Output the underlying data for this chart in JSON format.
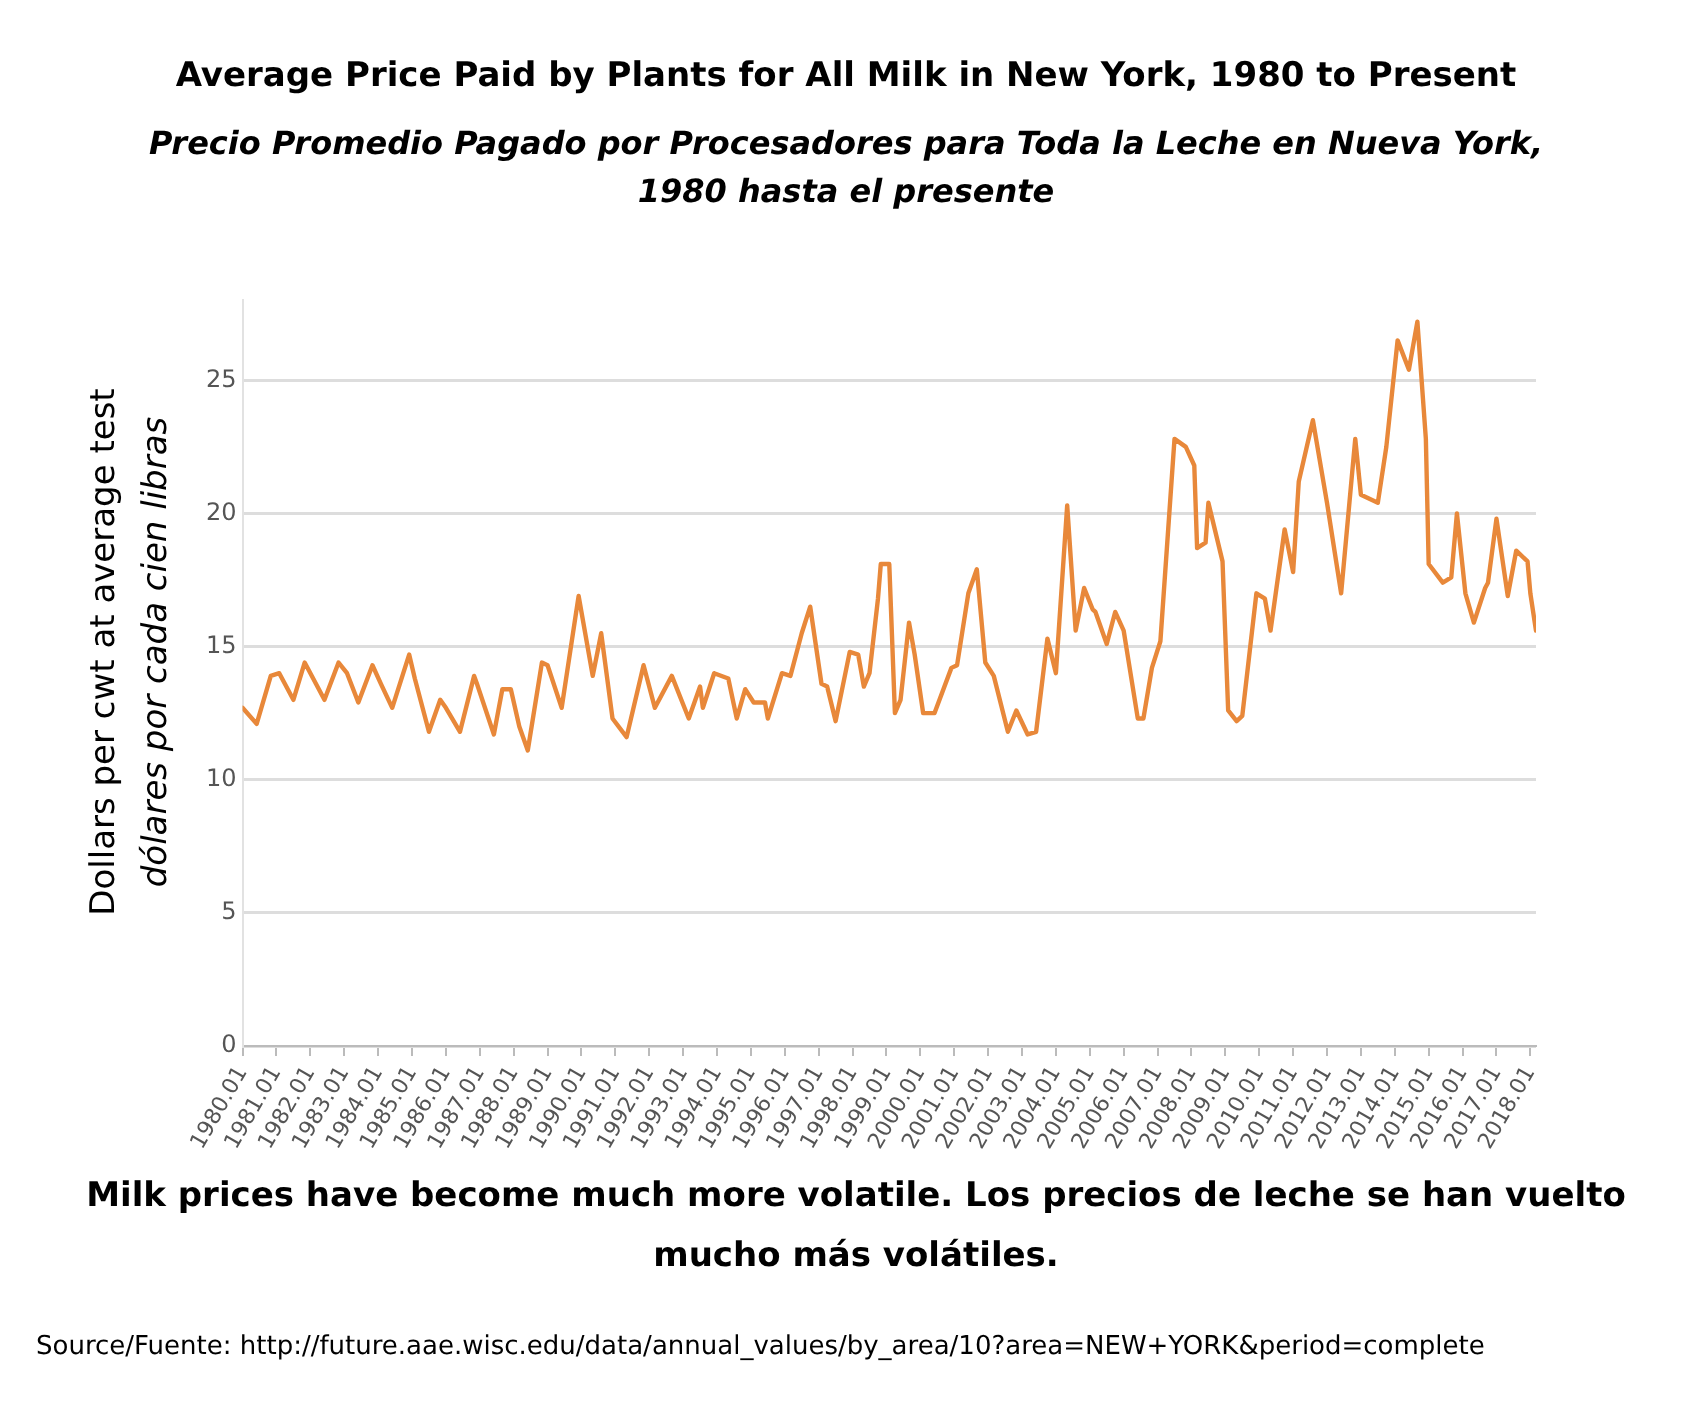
{
  "chart_data": {
    "type": "line",
    "title": "Average Price Paid by Plants for All Milk in New York, 1980 to Present",
    "subtitle": "Precio Promedio Pagado por Procesadores para Toda la Leche en Nueva York, 1980 hasta el presente",
    "ylabel": "Dollars per cwt at average test\ndólares por cada cien libras",
    "annotations": [
      "Milk prices have become much more volatile.  Los precios de leche se han vuelto mucho más volátiles.",
      "Source/Fuente: http://future.aae.wisc.edu/data/annual_values/by_area/10?area=NEW+YORK&period=complete"
    ],
    "x": [
      "1980-01",
      "1980-06",
      "1980-11",
      "1981-02",
      "1981-07",
      "1981-11",
      "1982-06",
      "1982-11",
      "1983-02",
      "1983-06",
      "1983-11",
      "1984-02",
      "1984-06",
      "1984-12",
      "1985-02",
      "1985-07",
      "1985-11",
      "1986-01",
      "1986-06",
      "1986-11",
      "1986-12",
      "1987-06",
      "1987-09",
      "1987-12",
      "1988-03",
      "1988-06",
      "1988-11",
      "1989-01",
      "1989-06",
      "1989-12",
      "1990-05",
      "1990-08",
      "1990-12",
      "1991-05",
      "1991-11",
      "1992-03",
      "1992-09",
      "1993-03",
      "1993-07",
      "1993-08",
      "1993-12",
      "1994-05",
      "1994-08",
      "1994-11",
      "1995-02",
      "1995-06",
      "1995-07",
      "1995-12",
      "1996-03",
      "1996-07",
      "1996-10",
      "1997-02",
      "1997-04",
      "1997-07",
      "1997-12",
      "1998-03",
      "1998-05",
      "1998-07",
      "1998-10",
      "1998-11",
      "1999-02",
      "1999-04",
      "1999-06",
      "1999-09",
      "1999-11",
      "2000-02",
      "2000-06",
      "2000-12",
      "2001-02",
      "2001-06",
      "2001-09",
      "2001-12",
      "2002-03",
      "2002-08",
      "2002-11",
      "2003-03",
      "2003-06",
      "2003-10",
      "2004-01",
      "2004-05",
      "2004-08",
      "2004-11",
      "2005-02",
      "2005-03",
      "2005-07",
      "2005-10",
      "2006-01",
      "2006-06",
      "2006-08",
      "2006-11",
      "2007-02",
      "2007-07",
      "2007-11",
      "2008-02",
      "2008-03",
      "2008-06",
      "2008-07",
      "2008-12",
      "2009-02",
      "2009-05",
      "2009-07",
      "2009-12",
      "2010-03",
      "2010-05",
      "2010-10",
      "2011-01",
      "2011-03",
      "2011-08",
      "2012-01",
      "2012-06",
      "2012-11",
      "2013-01",
      "2013-07",
      "2013-10",
      "2014-02",
      "2014-06",
      "2014-09",
      "2014-12",
      "2015-01",
      "2015-06",
      "2015-09",
      "2015-11",
      "2016-02",
      "2016-05",
      "2016-09",
      "2016-10",
      "2017-01",
      "2017-05",
      "2017-08",
      "2017-12",
      "2018-01",
      "2018-03"
    ],
    "series": [
      {
        "color": "#e8883a",
        "values": [
          12.7,
          12.1,
          13.9,
          14.0,
          13.0,
          14.4,
          13.0,
          14.4,
          14.0,
          12.9,
          14.3,
          13.6,
          12.7,
          14.7,
          13.8,
          11.8,
          13.0,
          12.7,
          11.8,
          13.9,
          13.6,
          11.7,
          13.4,
          13.4,
          12.0,
          11.1,
          14.4,
          14.3,
          12.7,
          16.9,
          13.9,
          15.5,
          12.3,
          11.6,
          14.3,
          12.7,
          13.9,
          12.3,
          13.5,
          12.7,
          14.0,
          13.8,
          12.3,
          13.4,
          12.9,
          12.9,
          12.3,
          14.0,
          13.9,
          15.5,
          16.5,
          13.6,
          13.5,
          12.2,
          14.8,
          14.7,
          13.5,
          14.0,
          16.8,
          18.1,
          18.1,
          12.5,
          13.0,
          15.9,
          14.7,
          12.5,
          12.5,
          14.2,
          14.3,
          17.0,
          17.9,
          14.4,
          13.9,
          11.8,
          12.6,
          11.7,
          11.8,
          15.3,
          14.0,
          20.3,
          15.6,
          17.2,
          16.4,
          16.3,
          15.1,
          16.3,
          15.6,
          12.3,
          12.3,
          14.2,
          15.2,
          22.8,
          22.5,
          21.8,
          18.7,
          18.9,
          20.4,
          18.2,
          12.6,
          12.2,
          12.4,
          17.0,
          16.8,
          15.6,
          19.4,
          17.8,
          21.2,
          23.5,
          20.4,
          17.0,
          22.8,
          20.7,
          20.4,
          22.5,
          26.5,
          25.4,
          27.2,
          22.8,
          18.1,
          17.4,
          17.6,
          20.0,
          17.0,
          15.9,
          17.2,
          17.4,
          19.8,
          16.9,
          18.6,
          18.2,
          17.0,
          15.6
        ]
      }
    ],
    "xlim": [
      "1980-01",
      "2018-03"
    ],
    "xticks": [
      {
        "value": "1980-01",
        "label": "1980.01"
      },
      {
        "value": "1981-01",
        "label": "1981.01"
      },
      {
        "value": "1982-01",
        "label": "1982.01"
      },
      {
        "value": "1983-01",
        "label": "1983.01"
      },
      {
        "value": "1984-01",
        "label": "1984.01"
      },
      {
        "value": "1985-01",
        "label": "1985.01"
      },
      {
        "value": "1986-01",
        "label": "1986.01"
      },
      {
        "value": "1987-01",
        "label": "1987.01"
      },
      {
        "value": "1988-01",
        "label": "1988.01"
      },
      {
        "value": "1989-01",
        "label": "1989.01"
      },
      {
        "value": "1990-01",
        "label": "1990.01"
      },
      {
        "value": "1991-01",
        "label": "1991.01"
      },
      {
        "value": "1992-01",
        "label": "1992.01"
      },
      {
        "value": "1993-01",
        "label": "1993.01"
      },
      {
        "value": "1994-01",
        "label": "1994.01"
      },
      {
        "value": "1995-01",
        "label": "1995.01"
      },
      {
        "value": "1996-01",
        "label": "1996.01"
      },
      {
        "value": "1997-01",
        "label": "1997.01"
      },
      {
        "value": "1998-01",
        "label": "1998.01"
      },
      {
        "value": "1999-01",
        "label": "1999.01"
      },
      {
        "value": "2000-01",
        "label": "2000.01"
      },
      {
        "value": "2001-01",
        "label": "2001.01"
      },
      {
        "value": "2002-01",
        "label": "2002.01"
      },
      {
        "value": "2003-01",
        "label": "2003.01"
      },
      {
        "value": "2004-01",
        "label": "2004.01"
      },
      {
        "value": "2005-01",
        "label": "2005.01"
      },
      {
        "value": "2006-01",
        "label": "2006.01"
      },
      {
        "value": "2007-01",
        "label": "2007.01"
      },
      {
        "value": "2008-01",
        "label": "2008.01"
      },
      {
        "value": "2009-01",
        "label": "2009.01"
      },
      {
        "value": "2010-01",
        "label": "2010.01"
      },
      {
        "value": "2011-01",
        "label": "2011.01"
      },
      {
        "value": "2012-01",
        "label": "2012.01"
      },
      {
        "value": "2013-01",
        "label": "2013.01"
      },
      {
        "value": "2014-01",
        "label": "2014.01"
      },
      {
        "value": "2015-01",
        "label": "2015.01"
      },
      {
        "value": "2016-01",
        "label": "2016.01"
      },
      {
        "value": "2017-01",
        "label": "2017.01"
      },
      {
        "value": "2018-01",
        "label": "2018.01"
      }
    ],
    "ylim": [
      0,
      28
    ],
    "yticks": [
      0,
      5,
      10,
      15,
      20,
      25
    ],
    "grid": "y",
    "legend": false,
    "marker": "none",
    "line_style": "solid"
  }
}
